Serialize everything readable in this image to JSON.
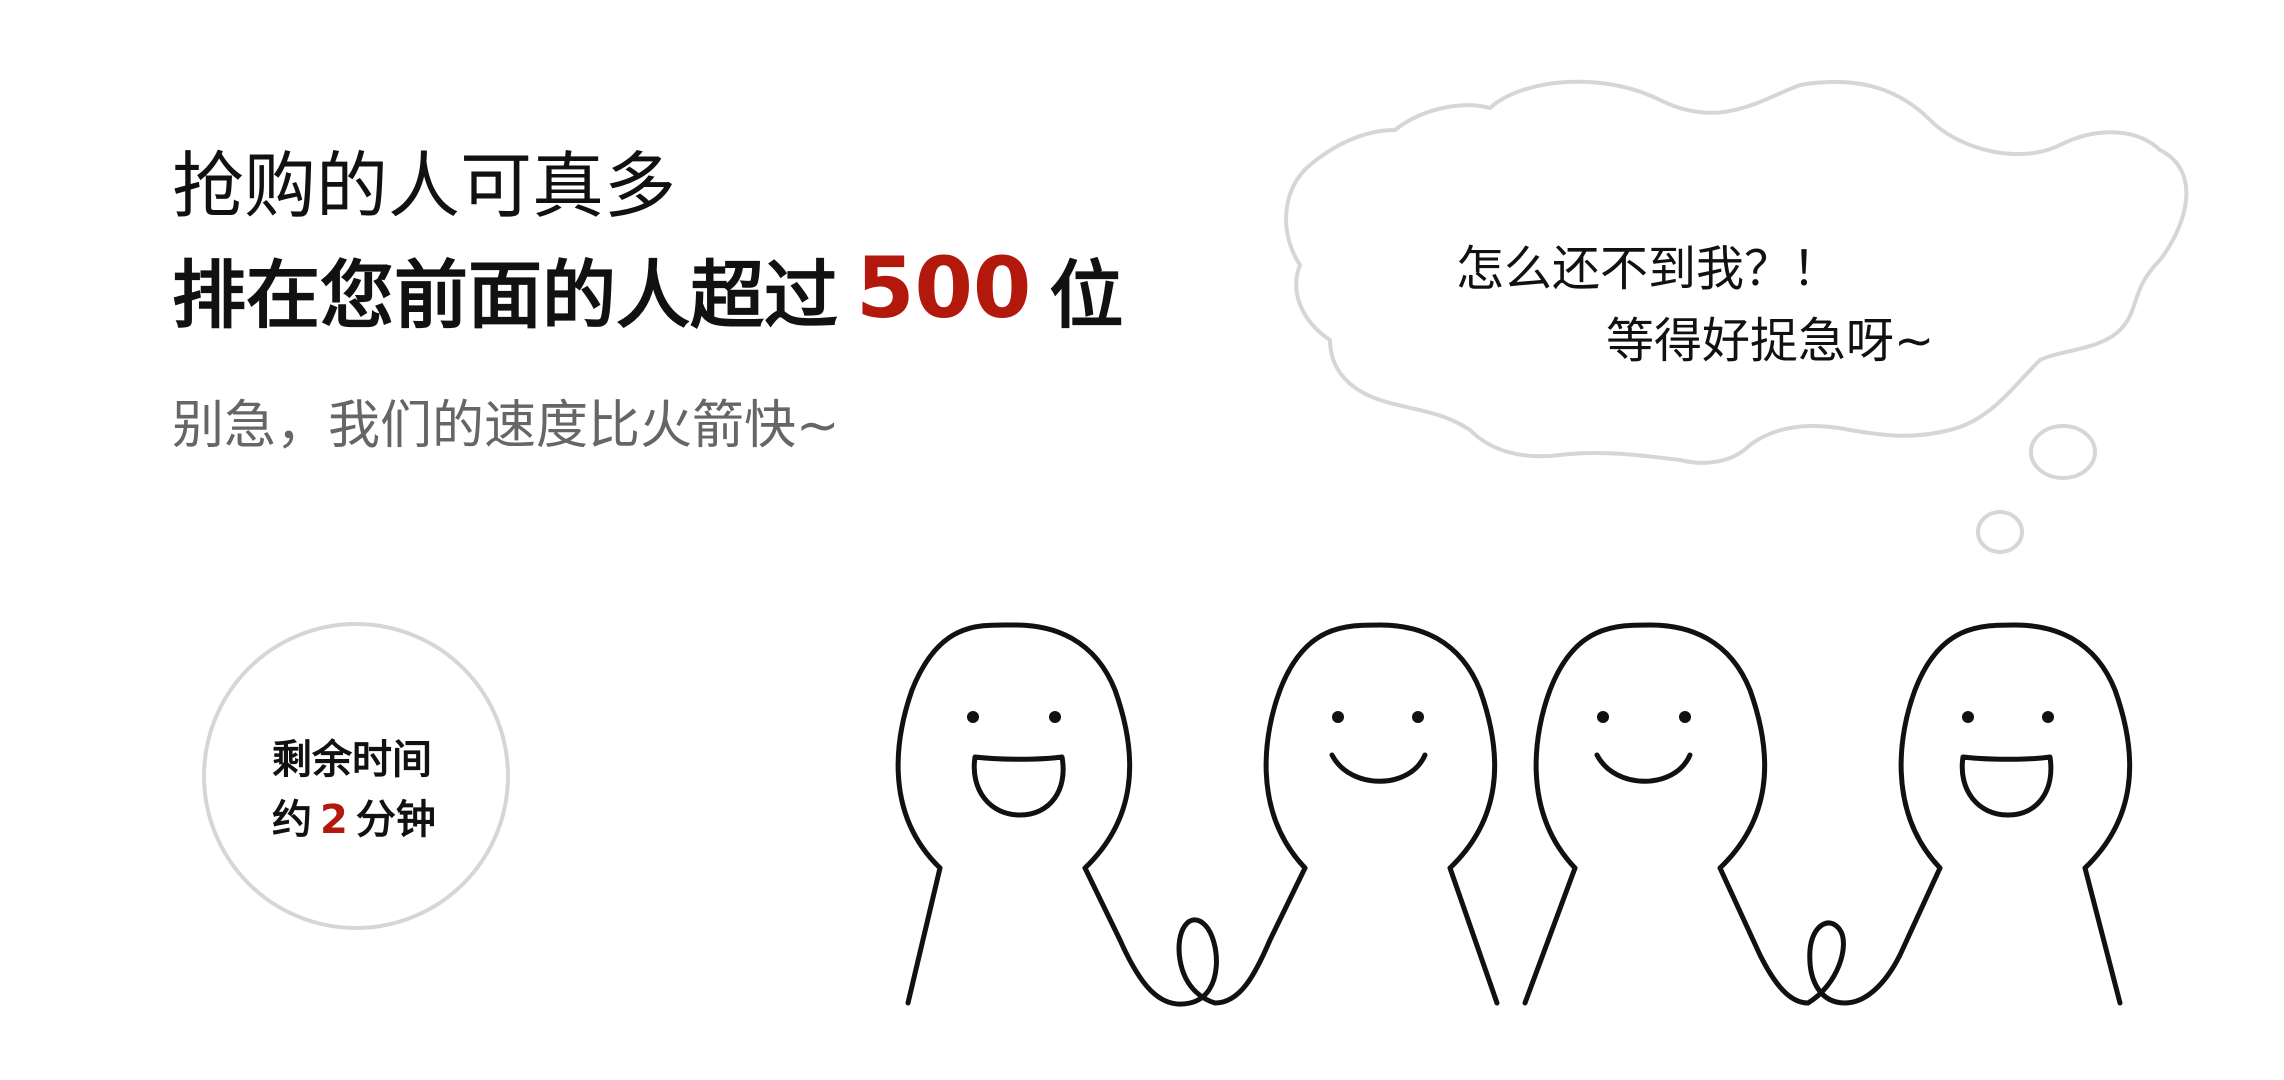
{
  "header": {
    "title": "抢购的人可真多",
    "queue_prefix": "排在您前面的人超过",
    "queue_count": "500",
    "queue_suffix": "位",
    "subtitle": "别急，我们的速度比火箭快~"
  },
  "timer": {
    "label": "剩余时间",
    "prefix": "约",
    "minutes": "2",
    "suffix": "分钟"
  },
  "bubble": {
    "line1": "怎么还不到我？！",
    "line2": "等得好捉急呀~"
  },
  "colors": {
    "accent": "#b3180c",
    "subtitle": "#666666",
    "outline": "#d6d6d6"
  }
}
